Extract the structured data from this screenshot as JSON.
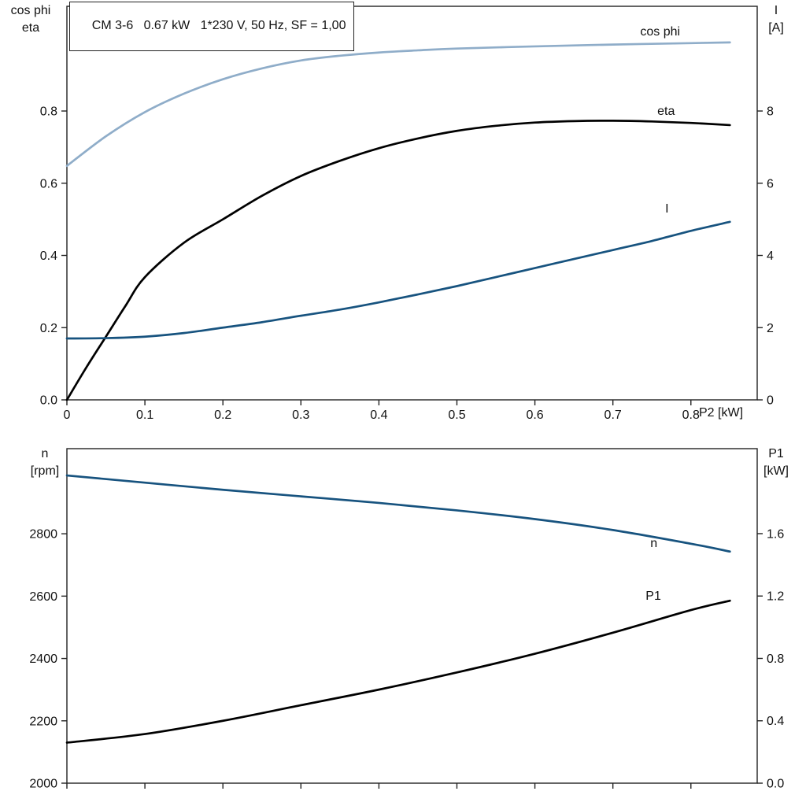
{
  "colors": {
    "light_blue": "#8fadc9",
    "dark_blue": "#17537f",
    "black": "#000000",
    "frame": "#222222"
  },
  "chart_data": [
    {
      "type": "line",
      "title": "CM 3-6   0.67 kW   1*230 V, 50 Hz, SF = 1,00",
      "xlabel": "P2 [kW]",
      "ylabel_left": [
        "cos phi",
        "eta"
      ],
      "ylabel_right": [
        "I",
        "[A]"
      ],
      "xlim": [
        0,
        0.885
      ],
      "xticks": [
        0,
        0.1,
        0.2,
        0.3,
        0.4,
        0.5,
        0.6,
        0.7,
        0.8
      ],
      "xtick_labels": [
        "0",
        "0.1",
        "0.2",
        "0.3",
        "0.4",
        "0.5",
        "0.6",
        "0.7",
        "0.8"
      ],
      "grid": false,
      "axes": {
        "left": {
          "lim": [
            0,
            1.09
          ],
          "ticks": [
            0,
            0.2,
            0.4,
            0.6,
            0.8
          ],
          "labels": [
            "0.0",
            "0.2",
            "0.4",
            "0.6",
            "0.8"
          ]
        },
        "right": {
          "lim": [
            0,
            10.9
          ],
          "ticks": [
            0,
            2,
            4,
            6,
            8
          ],
          "labels": [
            "0",
            "2",
            "4",
            "6",
            "8"
          ]
        }
      },
      "series": [
        {
          "name": "cos phi",
          "axis": "left",
          "color": "#8fadc9",
          "x": [
            0,
            0.05,
            0.1,
            0.15,
            0.2,
            0.25,
            0.3,
            0.35,
            0.4,
            0.45,
            0.5,
            0.6,
            0.7,
            0.8,
            0.85
          ],
          "y": [
            0.648,
            0.73,
            0.797,
            0.848,
            0.888,
            0.918,
            0.94,
            0.953,
            0.962,
            0.968,
            0.973,
            0.979,
            0.984,
            0.988,
            0.99
          ],
          "label": {
            "text": "cos phi",
            "x": 0.735,
            "y": 1.02
          }
        },
        {
          "name": "eta",
          "axis": "left",
          "color": "#000000",
          "x": [
            0,
            0.025,
            0.05,
            0.075,
            0.1,
            0.15,
            0.2,
            0.25,
            0.3,
            0.35,
            0.4,
            0.45,
            0.5,
            0.55,
            0.6,
            0.65,
            0.7,
            0.75,
            0.8,
            0.85
          ],
          "y": [
            0,
            0.09,
            0.175,
            0.26,
            0.34,
            0.435,
            0.5,
            0.565,
            0.62,
            0.662,
            0.697,
            0.724,
            0.745,
            0.759,
            0.768,
            0.772,
            0.773,
            0.771,
            0.767,
            0.761
          ],
          "label": {
            "text": "eta",
            "x": 0.757,
            "y": 0.8
          }
        },
        {
          "name": "I",
          "axis": "right",
          "color": "#17537f",
          "x": [
            0,
            0.05,
            0.1,
            0.15,
            0.2,
            0.25,
            0.3,
            0.35,
            0.4,
            0.45,
            0.5,
            0.55,
            0.6,
            0.65,
            0.7,
            0.75,
            0.8,
            0.85
          ],
          "y": [
            1.7,
            1.71,
            1.75,
            1.85,
            2.0,
            2.15,
            2.33,
            2.5,
            2.7,
            2.92,
            3.15,
            3.4,
            3.65,
            3.9,
            4.15,
            4.4,
            4.68,
            4.93
          ],
          "label": {
            "text": "I",
            "x": 0.767,
            "y": 5.3
          }
        }
      ]
    },
    {
      "type": "line",
      "title": "",
      "xlabel": "",
      "ylabel_left": [
        "n",
        "[rpm]"
      ],
      "ylabel_right": [
        "P1",
        "[kW]"
      ],
      "xlim": [
        0,
        0.885
      ],
      "xticks": [
        0,
        0.1,
        0.2,
        0.3,
        0.4,
        0.5,
        0.6,
        0.7,
        0.8
      ],
      "xtick_labels": [],
      "grid": false,
      "axes": {
        "left": {
          "lim": [
            2000,
            3073
          ],
          "ticks": [
            2000,
            2200,
            2400,
            2600,
            2800
          ],
          "labels": [
            "2000",
            "2200",
            "2400",
            "2600",
            "2800"
          ]
        },
        "right": {
          "lim": [
            0,
            2.145
          ],
          "ticks": [
            0,
            0.4,
            0.8,
            1.2,
            1.6
          ],
          "labels": [
            "0.0",
            "0.4",
            "0.8",
            "1.2",
            "1.6"
          ]
        }
      },
      "series": [
        {
          "name": "n",
          "axis": "left",
          "color": "#17537f",
          "x": [
            0,
            0.1,
            0.2,
            0.3,
            0.4,
            0.5,
            0.6,
            0.7,
            0.8,
            0.85
          ],
          "y": [
            2987,
            2964,
            2941,
            2920,
            2899,
            2875,
            2847,
            2812,
            2768,
            2743
          ],
          "label": {
            "text": "n",
            "x": 0.748,
            "y": 2770
          }
        },
        {
          "name": "P1",
          "axis": "right",
          "color": "#000000",
          "x": [
            0,
            0.1,
            0.2,
            0.3,
            0.4,
            0.5,
            0.6,
            0.7,
            0.8,
            0.85
          ],
          "y": [
            0.26,
            0.315,
            0.4,
            0.5,
            0.6,
            0.71,
            0.83,
            0.965,
            1.11,
            1.17
          ],
          "label": {
            "text": "P1",
            "x": 0.742,
            "y": 1.2
          }
        }
      ]
    }
  ]
}
